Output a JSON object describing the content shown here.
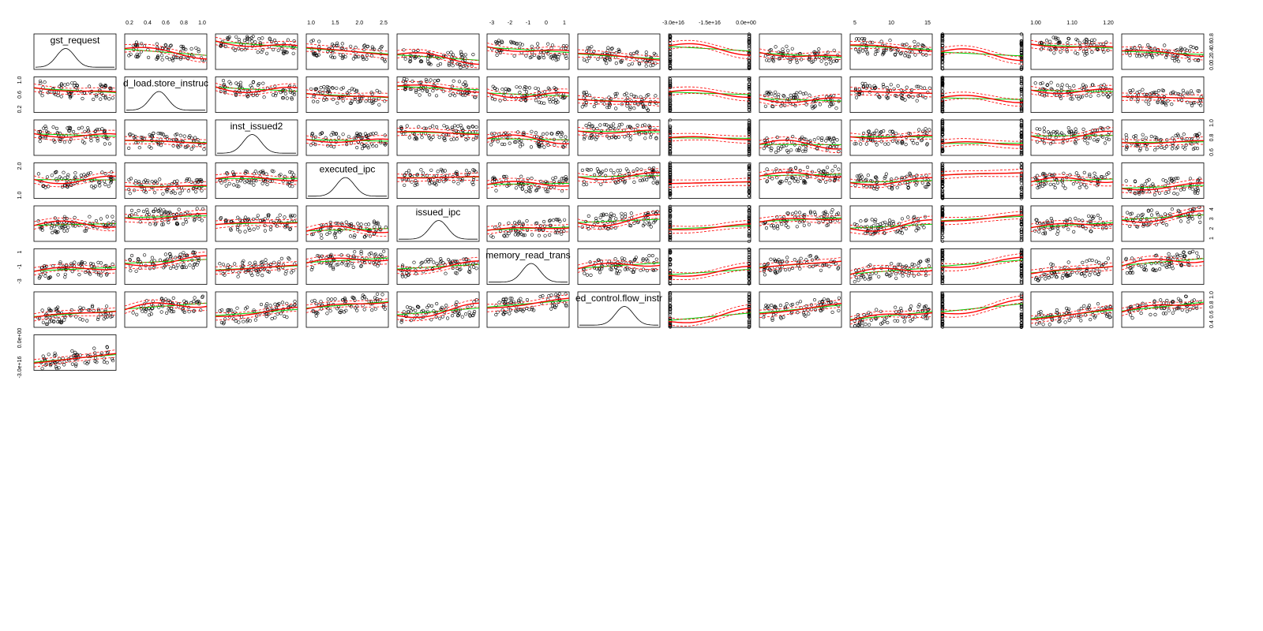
{
  "chart_data": {
    "type": "scatter",
    "variables": [
      "gst_request",
      "d_load.store_instruc",
      "inst_issued2",
      "executed_ipc",
      "issued_ipc",
      "memory_read_trans",
      "ed_control.flow_instr",
      "",
      "",
      "",
      "",
      "",
      ""
    ],
    "top_axis_ticks": [
      {
        "col": 1,
        "labels": [
          "0.2",
          "0.4",
          "0.6",
          "0.8",
          "1.0"
        ]
      },
      {
        "col": 3,
        "labels": [
          "1.0",
          "1.5",
          "2.0",
          "2.5"
        ]
      },
      {
        "col": 5,
        "labels": [
          "-3",
          "-2",
          "-1",
          "0",
          "1"
        ]
      },
      {
        "col": 7,
        "labels": [
          "-3.0e+16",
          "-1.5e+16",
          "0.0e+00"
        ]
      },
      {
        "col": 9,
        "labels": [
          "5",
          "10",
          "15"
        ]
      },
      {
        "col": 11,
        "labels": [
          "1.00",
          "1.10",
          "1.20"
        ]
      }
    ],
    "left_axis_ticks": [
      {
        "row": 1,
        "labels": [
          "0.2",
          "0.6",
          "1.0"
        ]
      },
      {
        "row": 3,
        "labels": [
          "1.0",
          "2.0"
        ]
      },
      {
        "row": 5,
        "labels": [
          "-3",
          "-1",
          "1"
        ]
      },
      {
        "row": 7,
        "labels": [
          "-3.0e+16",
          "0.0e+00"
        ]
      }
    ],
    "right_axis_ticks": [
      {
        "row": 0,
        "labels": [
          "0.0",
          "0.2",
          "0.4",
          "0.6",
          "0.8"
        ]
      },
      {
        "row": 2,
        "labels": [
          "0.6",
          "0.8",
          "1.0"
        ]
      },
      {
        "row": 4,
        "labels": [
          "1",
          "2",
          "3",
          "4"
        ]
      },
      {
        "row": 6,
        "labels": [
          "0.4",
          "0.6",
          "0.8",
          "1.0"
        ]
      }
    ],
    "layout": {
      "rows": 8,
      "cols": 13
    },
    "series_colors": {
      "points": "#000000",
      "linear_fit": "#00cc00",
      "smooth_fit": "#ff0000"
    },
    "grid": false,
    "legend": "none"
  }
}
